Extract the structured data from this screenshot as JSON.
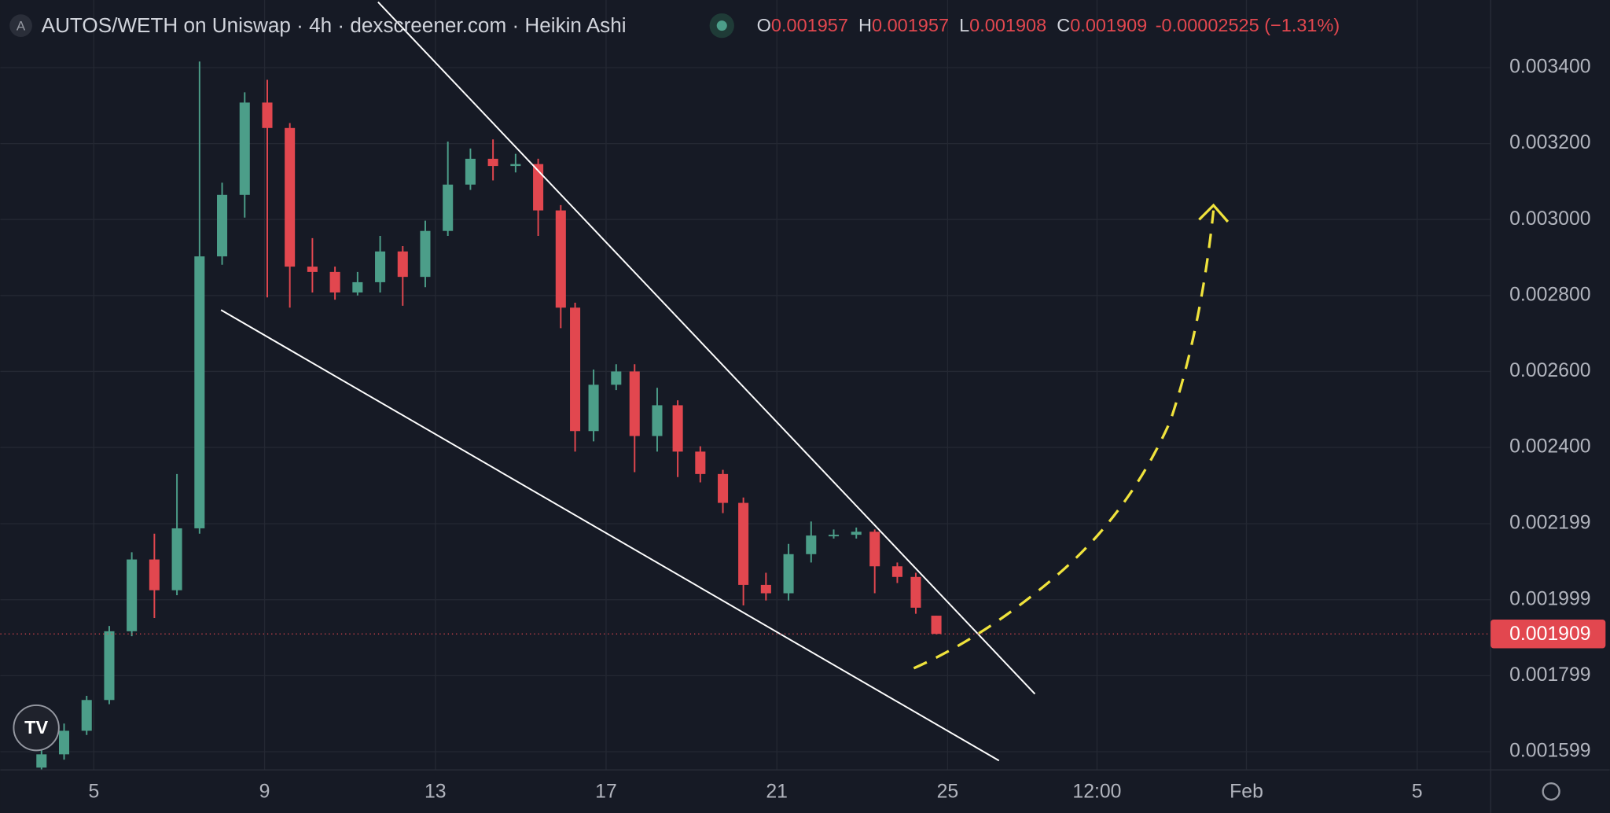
{
  "header": {
    "badge": "A",
    "title": "AUTOS/WETH on Uniswap · 4h · dexscreener.com · Heikin Ashi",
    "ohlc": [
      {
        "label": "O",
        "value": "0.001957"
      },
      {
        "label": "H",
        "value": "0.001957"
      },
      {
        "label": "L",
        "value": "0.001908"
      },
      {
        "label": "C",
        "value": "0.001909"
      }
    ],
    "change": "-0.00002525 (−1.31%)"
  },
  "chart_data": {
    "type": "candlestick",
    "up_color": "#4c9e89",
    "down_color": "#e2474f",
    "grid": true,
    "xlim": [
      2.81,
      37.72
    ],
    "ylim": [
      0.001551,
      0.003578
    ],
    "xticks": [
      5,
      9,
      13,
      17,
      21,
      25,
      {
        "value": 28.5,
        "label": "12:00"
      },
      {
        "value": 32,
        "label": "Feb"
      },
      {
        "value": 36,
        "label": "5"
      }
    ],
    "yticks": [
      {
        "value": 0.0034,
        "label": "0.003400"
      },
      {
        "value": 0.0032,
        "label": "0.003200"
      },
      {
        "value": 0.003,
        "label": "0.003000"
      },
      {
        "value": 0.0028,
        "label": "0.002800"
      },
      {
        "value": 0.0026,
        "label": "0.002600"
      },
      {
        "value": 0.0024,
        "label": "0.002400"
      },
      {
        "value": 0.002199,
        "label": "0.002199"
      },
      {
        "value": 0.001999,
        "label": "0.001999"
      },
      {
        "value": 0.001799,
        "label": "0.001799"
      },
      {
        "value": 0.001599,
        "label": "0.001599"
      }
    ],
    "last_price": {
      "value": 0.001909,
      "label": "0.001909"
    },
    "x": [
      3.774,
      4.303,
      4.832,
      5.361,
      5.889,
      6.418,
      6.947,
      7.476,
      8.005,
      8.534,
      9.063,
      9.591,
      10.12,
      10.649,
      11.178,
      11.707,
      12.236,
      12.764,
      13.293,
      13.822,
      14.351,
      14.88,
      15.409,
      15.938,
      16.274,
      16.707,
      17.236,
      17.668,
      18.197,
      18.678,
      19.207,
      19.736,
      20.216,
      20.745,
      21.274,
      21.803,
      22.332,
      22.861,
      23.293,
      23.822,
      24.255,
      24.736
    ],
    "open": [
      0.001557,
      0.001592,
      0.001654,
      0.001735,
      0.001916,
      0.002105,
      0.002024,
      0.002187,
      0.002903,
      0.003065,
      0.003308,
      0.003241,
      0.002876,
      0.002862,
      0.002808,
      0.002835,
      0.002916,
      0.002849,
      0.00297,
      0.003092,
      0.00316,
      0.003141,
      0.003146,
      0.003024,
      0.002768,
      0.002443,
      0.002565,
      0.0026,
      0.00243,
      0.002511,
      0.002389,
      0.00233,
      0.002254,
      0.002038,
      0.002016,
      0.002119,
      0.002168,
      0.00217,
      0.002178,
      0.002087,
      0.002059,
      0.001957
    ],
    "high": [
      0.001605,
      0.001673,
      0.001746,
      0.00193,
      0.002124,
      0.002173,
      0.00233,
      0.003416,
      0.003097,
      0.003335,
      0.003368,
      0.003254,
      0.002951,
      0.002876,
      0.002862,
      0.002957,
      0.00293,
      0.002997,
      0.003205,
      0.003187,
      0.003211,
      0.003173,
      0.00316,
      0.003038,
      0.002781,
      0.002605,
      0.002619,
      0.002619,
      0.002557,
      0.002524,
      0.002403,
      0.002341,
      0.002268,
      0.00207,
      0.002146,
      0.002205,
      0.002184,
      0.002189,
      0.002184,
      0.002097,
      0.00207,
      0.001957
    ],
    "low": [
      0.001551,
      0.001578,
      0.001643,
      0.001724,
      0.001903,
      0.001951,
      0.002011,
      0.002173,
      0.002881,
      0.003005,
      0.002795,
      0.002768,
      0.002808,
      0.002789,
      0.0028,
      0.002808,
      0.002773,
      0.002822,
      0.002957,
      0.003078,
      0.003103,
      0.003124,
      0.002957,
      0.002714,
      0.002389,
      0.002416,
      0.002551,
      0.002335,
      0.002389,
      0.002322,
      0.002308,
      0.002227,
      0.001984,
      0.001997,
      0.001997,
      0.002097,
      0.00216,
      0.00216,
      0.002016,
      0.002043,
      0.001962,
      0.001908
    ],
    "close": [
      0.001592,
      0.001654,
      0.001735,
      0.001916,
      0.002105,
      0.002024,
      0.002187,
      0.002903,
      0.003065,
      0.003308,
      0.003241,
      0.002876,
      0.002862,
      0.002808,
      0.002835,
      0.002916,
      0.002849,
      0.00297,
      0.003092,
      0.00316,
      0.003141,
      0.003146,
      0.003024,
      0.002768,
      0.002443,
      0.002565,
      0.0026,
      0.00243,
      0.002511,
      0.002389,
      0.00233,
      0.002254,
      0.002038,
      0.002016,
      0.002119,
      0.002168,
      0.00217,
      0.002178,
      0.002087,
      0.002059,
      0.001978,
      0.001909
    ]
  }
}
